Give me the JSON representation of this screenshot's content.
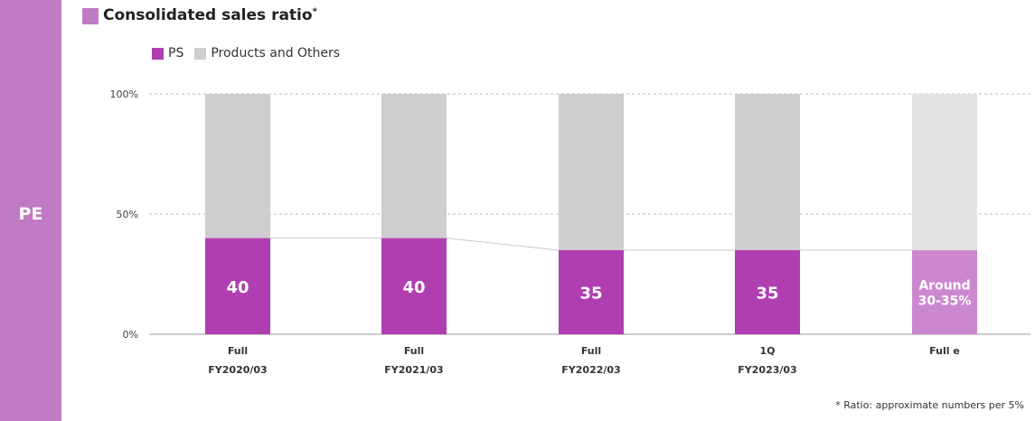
{
  "side_label": "PE",
  "title": "Consolidated sales ratio",
  "title_mark": "*",
  "footnote": "* Ratio: approximate numbers per 5%",
  "colors": {
    "ps": "#b03eb1",
    "products_others": "#cfcdcf",
    "estimate_ps": "#cc88cf",
    "estimate_other": "#e4e3e4",
    "band": "#c17bc4"
  },
  "chart_data": {
    "type": "bar",
    "stacked": true,
    "title": "Consolidated sales ratio",
    "ylim": [
      0,
      100
    ],
    "yticks": [
      "0%",
      "50%",
      "100%"
    ],
    "categories": [
      {
        "line1": "Full",
        "line2": "FY2020/03"
      },
      {
        "line1": "Full",
        "line2": "FY2021/03"
      },
      {
        "line1": "Full",
        "line2": "FY2022/03"
      },
      {
        "line1": "1Q",
        "line2": "FY2023/03"
      },
      {
        "line1": "Full e",
        "line2": ""
      }
    ],
    "series": [
      {
        "name": "PS",
        "values": [
          40,
          40,
          35,
          35,
          35
        ]
      },
      {
        "name": "Products and Others",
        "values": [
          60,
          60,
          65,
          65,
          65
        ]
      }
    ],
    "data_labels": [
      {
        "line1": "40",
        "line2": ""
      },
      {
        "line1": "40",
        "line2": ""
      },
      {
        "line1": "35",
        "line2": ""
      },
      {
        "line1": "35",
        "line2": ""
      },
      {
        "line1": "Around",
        "line2": "30-35%"
      }
    ],
    "estimate_index": 4,
    "gridlines": true,
    "legend_position": "top-left"
  }
}
